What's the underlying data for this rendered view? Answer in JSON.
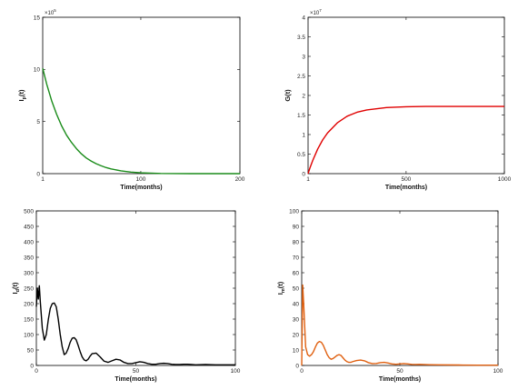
{
  "chart_data": [
    {
      "type": "line",
      "ylabel_main": "I",
      "ylabel_sub": "p",
      "ylabel_tail": "(t)",
      "xlabel": "Time(months)",
      "xlim": [
        1,
        200
      ],
      "ylim": [
        0,
        15
      ],
      "x_ticks": [
        1,
        100,
        200
      ],
      "y_ticks": [
        0,
        5,
        10,
        15
      ],
      "y_multiplier_base": "×10",
      "y_multiplier_exp": "5",
      "color": "#1a8c1a",
      "series": [
        {
          "x": [
            1,
            5,
            10,
            15,
            20,
            25,
            30,
            35,
            40,
            45,
            50,
            55,
            60,
            65,
            70,
            80,
            90,
            100,
            120,
            150,
            200
          ],
          "y": [
            10.1,
            8.6,
            7.0,
            5.7,
            4.6,
            3.7,
            3.0,
            2.4,
            1.9,
            1.5,
            1.2,
            0.95,
            0.75,
            0.58,
            0.45,
            0.27,
            0.15,
            0.08,
            0.02,
            0.0,
            0.0
          ]
        }
      ]
    },
    {
      "type": "line",
      "ylabel_main": "G(t)",
      "ylabel_sub": "",
      "ylabel_tail": "",
      "xlabel": "Time(months)",
      "xlim": [
        1,
        1000
      ],
      "ylim": [
        0,
        4
      ],
      "x_ticks": [
        1,
        500,
        1000
      ],
      "y_ticks": [
        0,
        0.5,
        1,
        1.5,
        2,
        2.5,
        3,
        3.5,
        4
      ],
      "y_multiplier_base": "×10",
      "y_multiplier_exp": "7",
      "color": "#e00000",
      "series": [
        {
          "x": [
            1,
            10,
            25,
            50,
            75,
            100,
            150,
            200,
            250,
            300,
            400,
            500,
            600,
            800,
            1000
          ],
          "y": [
            0.0,
            0.14,
            0.34,
            0.63,
            0.86,
            1.04,
            1.3,
            1.47,
            1.57,
            1.63,
            1.69,
            1.71,
            1.72,
            1.72,
            1.72
          ]
        }
      ]
    },
    {
      "type": "line",
      "ylabel_main": "I",
      "ylabel_sub": "d",
      "ylabel_tail": "(t)",
      "xlabel": "Time(months)",
      "xlim": [
        0,
        100
      ],
      "ylim": [
        0,
        500
      ],
      "x_ticks": [
        0,
        50,
        100
      ],
      "y_ticks": [
        0,
        50,
        100,
        150,
        200,
        250,
        300,
        350,
        400,
        450,
        500
      ],
      "y_multiplier_base": "",
      "y_multiplier_exp": "",
      "color": "#000000",
      "series": [
        {
          "x": [
            0,
            0.5,
            1,
            1.5,
            2,
            3,
            4,
            5,
            6,
            7,
            8,
            9,
            10,
            11,
            12,
            13,
            14,
            15,
            16,
            17,
            18,
            19,
            20,
            21,
            22,
            23,
            24,
            25,
            26,
            27,
            28,
            30,
            32,
            34,
            36,
            38,
            40,
            42,
            44,
            46,
            48,
            50,
            52,
            54,
            56,
            58,
            60,
            62,
            64,
            66,
            68,
            70,
            72,
            74,
            76,
            78,
            80,
            85,
            90,
            95,
            100
          ],
          "y": [
            190,
            250,
            215,
            258,
            205,
            120,
            82,
            100,
            148,
            185,
            200,
            202,
            190,
            150,
            100,
            60,
            35,
            40,
            55,
            75,
            88,
            90,
            83,
            65,
            45,
            28,
            18,
            15,
            20,
            30,
            38,
            40,
            28,
            14,
            10,
            15,
            20,
            18,
            10,
            6,
            6,
            9,
            12,
            10,
            6,
            4,
            4,
            6,
            7,
            6,
            4,
            3,
            3,
            4,
            4,
            3,
            2,
            3,
            2,
            2,
            2
          ]
        }
      ]
    },
    {
      "type": "line",
      "ylabel_main": "I",
      "ylabel_sub": "m",
      "ylabel_tail": "(t)",
      "xlabel": "Time(months)",
      "xlim": [
        0,
        100
      ],
      "ylim": [
        0,
        100
      ],
      "x_ticks": [
        0,
        50,
        100
      ],
      "y_ticks": [
        0,
        10,
        20,
        30,
        40,
        50,
        60,
        70,
        80,
        90,
        100
      ],
      "y_multiplier_base": "",
      "y_multiplier_exp": "",
      "color": "#e06010",
      "series": [
        {
          "x": [
            0,
            0.5,
            1,
            2,
            3,
            4,
            5,
            6,
            7,
            8,
            9,
            10,
            11,
            12,
            13,
            14,
            15,
            16,
            17,
            18,
            19,
            20,
            21,
            22,
            23,
            24,
            25,
            26,
            28,
            30,
            32,
            34,
            36,
            38,
            40,
            42,
            44,
            46,
            48,
            50,
            52,
            54,
            56,
            58,
            60,
            65,
            70,
            80,
            90,
            100
          ],
          "y": [
            0,
            52,
            40,
            12,
            7,
            6,
            7,
            9,
            12,
            14.5,
            15.5,
            15,
            13,
            10,
            7,
            5,
            4,
            4.5,
            5.5,
            6.5,
            7,
            6.5,
            5,
            3.5,
            2.5,
            2,
            2,
            2.5,
            3.2,
            3.5,
            3,
            1.8,
            1.2,
            1.3,
            1.8,
            2,
            1.6,
            1,
            0.8,
            1,
            1.2,
            1,
            0.7,
            0.6,
            0.7,
            0.5,
            0.4,
            0.3,
            0.2,
            0.2
          ]
        }
      ]
    }
  ]
}
